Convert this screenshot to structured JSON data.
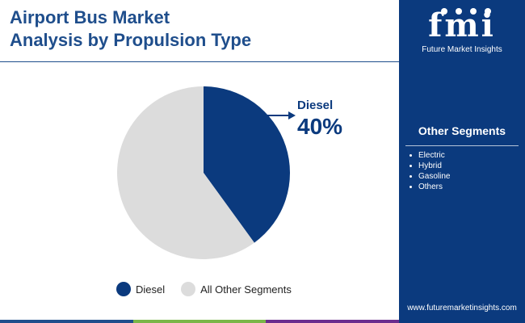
{
  "title": {
    "line1": "Airport Bus Market",
    "line2": "Analysis by Propulsion Type"
  },
  "sidebar": {
    "logo_mark": "fmi",
    "logo_text": "Future Market Insights",
    "segments_title": "Other Segments",
    "segments": [
      "Electric",
      "Hybrid",
      "Gasoline",
      "Others"
    ],
    "website": "www.futuremarketinsights.com"
  },
  "callout": {
    "label": "Diesel",
    "value": "40%"
  },
  "chart_data": {
    "type": "pie",
    "slices": [
      {
        "label": "Diesel",
        "value": 40,
        "color": "#0b3a7e"
      },
      {
        "label": "All Other Segments",
        "value": 60,
        "color": "#dcdcdc"
      }
    ],
    "legend": [
      "Diesel",
      "All Other Segments"
    ],
    "legend_placement": "bottom"
  },
  "colors": {
    "brand_dark": "#0b3a7e",
    "title_blue": "#1f4e8c",
    "bar_segments": [
      "#1f4e8c",
      "#7ab648",
      "#6a2c8e"
    ]
  }
}
